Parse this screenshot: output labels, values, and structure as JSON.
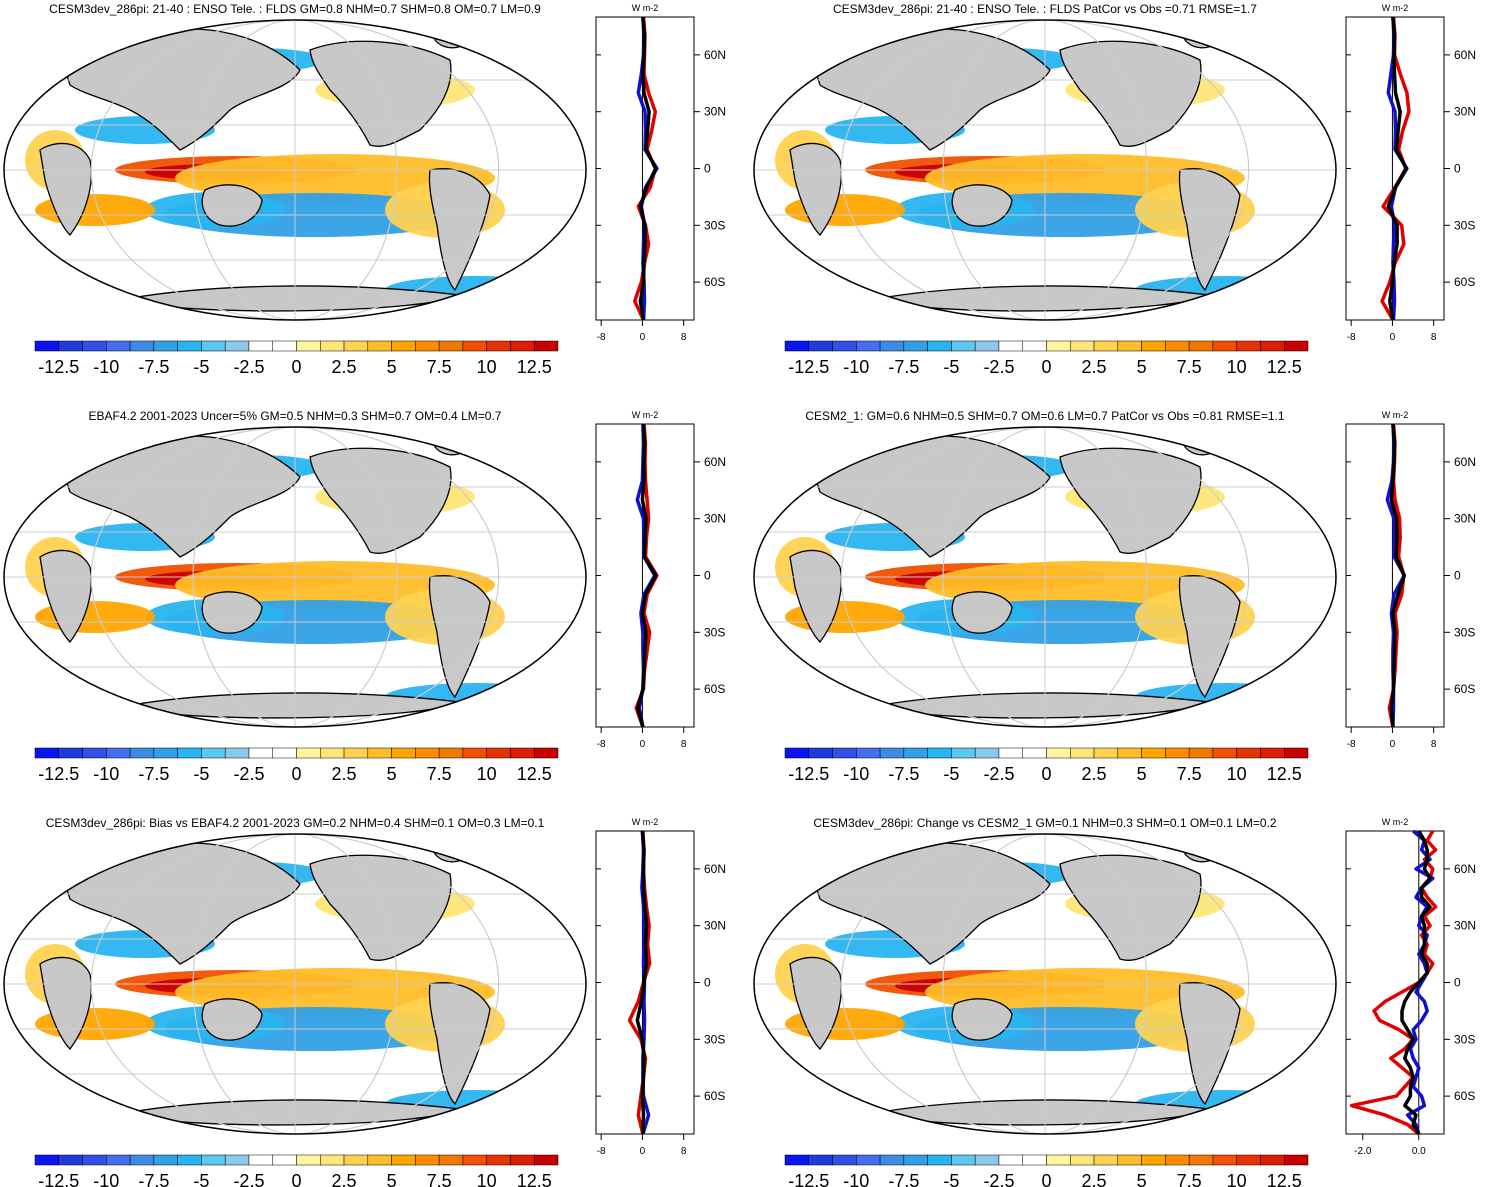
{
  "colorbar": {
    "colors": [
      "#0a14f0",
      "#1e3cdc",
      "#3250e6",
      "#466ef0",
      "#3c8ce6",
      "#32a0e6",
      "#28b4f0",
      "#5ac8f0",
      "#8cc8eb",
      "#ffffff",
      "#ffffff",
      "#fff5a0",
      "#ffe678",
      "#ffd250",
      "#ffbe28",
      "#ffa500",
      "#ff8c00",
      "#f07800",
      "#f05000",
      "#e63200",
      "#dc1e00",
      "#c80000"
    ],
    "labels": [
      "-12.5",
      "-10",
      "-7.5",
      "-5",
      "-2.5",
      "0",
      "2.5",
      "5",
      "7.5",
      "10",
      "12.5"
    ]
  },
  "chart_data": [
    {
      "type": "heatmap",
      "title": "CESM3dev_286pi: 21-40 : ENSO Tele. : FLDS GM=0.8 NHM=0.7 SHM=0.8 OM=0.7 LM=0.9",
      "units": "W m-2",
      "profile": {
        "title": "W m-2",
        "ylabels": [
          "60N",
          "30N",
          "0",
          "30S",
          "60S"
        ],
        "xticks": [
          "-8",
          "0",
          "8"
        ],
        "xlim": [
          -9,
          10
        ],
        "lat": [
          80,
          70,
          60,
          50,
          40,
          30,
          20,
          10,
          0,
          -10,
          -20,
          -30,
          -40,
          -50,
          -60,
          -70,
          -80
        ],
        "series": [
          {
            "name": "red",
            "color": "#e00000",
            "values": [
              0.2,
              0.5,
              0.4,
              0.3,
              1.2,
              2.5,
              1.8,
              0.9,
              2.5,
              1.5,
              -0.8,
              0.6,
              1.2,
              0.4,
              -0.2,
              -1.5,
              0.2
            ]
          },
          {
            "name": "blue",
            "color": "#1010d0",
            "values": [
              0.1,
              0.3,
              0.2,
              -0.2,
              -0.8,
              0.5,
              0.6,
              0.5,
              2.8,
              0.6,
              -0.2,
              0.4,
              0.2,
              0.1,
              0.3,
              0.4,
              0.2
            ]
          },
          {
            "name": "black",
            "color": "#000000",
            "values": [
              0.1,
              0.4,
              0.3,
              0.1,
              0.3,
              1.3,
              1.0,
              0.7,
              2.6,
              0.8,
              -0.4,
              0.5,
              0.5,
              0.3,
              0.2,
              -0.4,
              0.2
            ]
          }
        ]
      }
    },
    {
      "type": "heatmap",
      "title": "CESM3dev_286pi: 21-40 : ENSO Tele. : FLDS PatCor vs Obs =0.71 RMSE=1.7",
      "units": "W m-2",
      "profile": {
        "title": "W m-2",
        "ylabels": [
          "60N",
          "30N",
          "0",
          "30S",
          "60S"
        ],
        "xticks": [
          "-8",
          "0",
          "8"
        ],
        "xlim": [
          -9,
          10
        ],
        "lat": [
          80,
          70,
          60,
          50,
          40,
          30,
          20,
          10,
          0,
          -10,
          -20,
          -30,
          -40,
          -50,
          -60,
          -70,
          -80
        ],
        "series": [
          {
            "name": "red",
            "color": "#e00000",
            "values": [
              0.2,
              0.5,
              0.4,
              1.5,
              2.8,
              3.2,
              2.0,
              1.2,
              2.6,
              0.5,
              -1.8,
              1.8,
              2.2,
              0.5,
              -0.5,
              -2.0,
              0.1
            ]
          },
          {
            "name": "blue",
            "color": "#1010d0",
            "values": [
              0.1,
              0.3,
              0.2,
              -0.3,
              -0.8,
              0.5,
              0.6,
              0.5,
              2.8,
              0.6,
              -0.2,
              0.4,
              0.2,
              0.1,
              0.3,
              0.4,
              0.2
            ]
          },
          {
            "name": "black",
            "color": "#000000",
            "values": [
              0.1,
              0.4,
              0.3,
              0.4,
              0.6,
              1.5,
              1.1,
              0.8,
              2.7,
              0.6,
              -0.8,
              0.9,
              0.9,
              0.3,
              0.0,
              -0.5,
              0.1
            ]
          }
        ]
      }
    },
    {
      "type": "heatmap",
      "title": "EBAF4.2 2001-2023 Uncer=5% GM=0.5 NHM=0.3 SHM=0.7 OM=0.4 LM=0.7",
      "units": "W m-2",
      "profile": {
        "title": "W m-2",
        "ylabels": [
          "60N",
          "30N",
          "0",
          "30S",
          "60S"
        ],
        "xticks": [
          "-8",
          "0",
          "8"
        ],
        "xlim": [
          -9,
          10
        ],
        "lat": [
          80,
          70,
          60,
          50,
          40,
          30,
          20,
          10,
          0,
          -10,
          -20,
          -30,
          -40,
          -50,
          -60,
          -70,
          -80
        ],
        "series": [
          {
            "name": "red",
            "color": "#e00000",
            "values": [
              0.3,
              0.6,
              0.5,
              0.6,
              0.9,
              1.2,
              0.8,
              0.6,
              2.8,
              0.9,
              0.3,
              1.4,
              0.9,
              0.4,
              0.2,
              -1.2,
              0.1
            ]
          },
          {
            "name": "blue",
            "color": "#1010d0",
            "values": [
              0.1,
              0.2,
              0.1,
              0.0,
              -1.0,
              0.2,
              0.3,
              0.3,
              2.4,
              0.3,
              -0.3,
              0.1,
              0.1,
              0.2,
              0.1,
              -0.6,
              0.1
            ]
          },
          {
            "name": "black",
            "color": "#000000",
            "values": [
              0.2,
              0.4,
              0.3,
              0.3,
              0.0,
              0.7,
              0.5,
              0.4,
              2.6,
              0.6,
              0.0,
              0.7,
              0.5,
              0.3,
              0.1,
              -0.9,
              0.1
            ]
          }
        ]
      }
    },
    {
      "type": "heatmap",
      "title": "CESM2_1: GM=0.6 NHM=0.5 SHM=0.7 OM=0.6 LM=0.7 PatCor vs Obs =0.81 RMSE=1.1",
      "units": "W m-2",
      "profile": {
        "title": "W m-2",
        "ylabels": [
          "60N",
          "30N",
          "0",
          "30S",
          "60S"
        ],
        "xticks": [
          "-8",
          "0",
          "8"
        ],
        "xlim": [
          -9,
          10
        ],
        "lat": [
          80,
          70,
          60,
          50,
          40,
          30,
          20,
          10,
          0,
          -10,
          -20,
          -30,
          -40,
          -50,
          -60,
          -70,
          -80
        ],
        "series": [
          {
            "name": "red",
            "color": "#e00000",
            "values": [
              0.2,
              0.5,
              0.4,
              0.2,
              0.5,
              1.4,
              1.5,
              1.2,
              2.2,
              1.8,
              0.5,
              0.9,
              0.7,
              0.5,
              0.2,
              -0.6,
              0.1
            ]
          },
          {
            "name": "blue",
            "color": "#1010d0",
            "values": [
              0.1,
              0.3,
              0.2,
              -0.1,
              -1.0,
              0.3,
              0.4,
              0.3,
              2.3,
              0.3,
              -0.2,
              0.2,
              0.1,
              0.1,
              0.2,
              0.2,
              0.1
            ]
          },
          {
            "name": "black",
            "color": "#000000",
            "values": [
              0.1,
              0.4,
              0.3,
              0.1,
              -0.2,
              0.8,
              0.9,
              0.7,
              2.3,
              1.1,
              0.1,
              0.5,
              0.4,
              0.3,
              0.2,
              -0.2,
              0.1
            ]
          }
        ]
      }
    },
    {
      "type": "heatmap",
      "title": "CESM3dev_286pi: Bias vs EBAF4.2 2001-2023 GM=0.2 NHM=0.4 SHM=0.1 OM=0.3 LM=0.1",
      "units": "W m-2",
      "profile": {
        "title": "W m-2",
        "ylabels": [
          "60N",
          "30N",
          "0",
          "30S",
          "60S"
        ],
        "xticks": [
          "-8",
          "0",
          "8"
        ],
        "xlim": [
          -9,
          10
        ],
        "lat": [
          80,
          70,
          60,
          50,
          40,
          30,
          20,
          10,
          0,
          -10,
          -20,
          -30,
          -40,
          -50,
          -60,
          -70,
          -80
        ],
        "series": [
          {
            "name": "red",
            "color": "#e00000",
            "values": [
              0.1,
              0.3,
              0.2,
              0.4,
              0.8,
              1.3,
              1.0,
              1.4,
              0.2,
              -0.8,
              -2.5,
              -0.3,
              0.6,
              0.2,
              -0.3,
              -0.8,
              0.1
            ]
          },
          {
            "name": "blue",
            "color": "#1010d0",
            "values": [
              0.0,
              0.2,
              0.1,
              -0.1,
              0.2,
              0.3,
              0.3,
              0.2,
              0.4,
              0.3,
              0.4,
              0.3,
              0.1,
              0.1,
              0.2,
              1.2,
              0.1
            ]
          },
          {
            "name": "black",
            "color": "#000000",
            "values": [
              0.0,
              0.3,
              0.2,
              0.2,
              0.5,
              0.8,
              0.6,
              0.8,
              0.3,
              -0.2,
              -1.0,
              0.0,
              0.3,
              0.2,
              0.0,
              0.2,
              0.1
            ]
          }
        ]
      }
    },
    {
      "type": "heatmap",
      "title": "CESM3dev_286pi: Change vs CESM2_1 GM=0.1 NHM=0.3 SHM=0.1 OM=0.1 LM=0.2",
      "units": "W m-2",
      "profile": {
        "title": "W m-2",
        "ylabels": [
          "60N",
          "30N",
          "0",
          "30S",
          "60S"
        ],
        "xticks": [
          "-2.0",
          "0.0"
        ],
        "xlim": [
          -2.6,
          0.9
        ],
        "lat": [
          80,
          75,
          70,
          65,
          60,
          55,
          50,
          45,
          40,
          35,
          30,
          25,
          20,
          15,
          10,
          5,
          0,
          -5,
          -10,
          -15,
          -20,
          -25,
          -30,
          -35,
          -40,
          -45,
          -50,
          -55,
          -60,
          -65,
          -70,
          -75,
          -80
        ],
        "series": [
          {
            "name": "red",
            "color": "#e00000",
            "values": [
              0.5,
              0.3,
              0.6,
              0.2,
              0.5,
              0.4,
              0.1,
              0.3,
              0.6,
              0.2,
              0.4,
              0.1,
              0.3,
              0.2,
              0.5,
              0.3,
              0.0,
              -0.6,
              -1.2,
              -1.6,
              -1.4,
              -0.7,
              -0.2,
              -0.5,
              -1.0,
              -0.6,
              -0.2,
              -0.5,
              -0.8,
              -2.4,
              -1.2,
              -0.4,
              0.0
            ]
          },
          {
            "name": "blue",
            "color": "#1010d0",
            "values": [
              -0.2,
              0.2,
              0.1,
              0.4,
              -0.1,
              0.5,
              0.1,
              -0.1,
              0.3,
              0.1,
              0.0,
              0.3,
              0.2,
              0.0,
              0.2,
              0.3,
              0.1,
              -0.1,
              0.2,
              0.3,
              0.1,
              -0.2,
              -0.1,
              -0.3,
              -0.2,
              0.0,
              -0.1,
              -0.2,
              0.1,
              0.2,
              -0.4,
              -0.1,
              0.0
            ]
          },
          {
            "name": "black",
            "color": "#000000",
            "values": [
              0.0,
              0.2,
              0.3,
              0.3,
              0.2,
              0.4,
              0.1,
              0.1,
              0.4,
              0.1,
              0.2,
              0.2,
              0.2,
              0.1,
              0.3,
              0.3,
              0.0,
              -0.3,
              -0.5,
              -0.6,
              -0.6,
              -0.4,
              -0.2,
              -0.4,
              -0.5,
              -0.3,
              -0.2,
              -0.3,
              -0.3,
              -0.5,
              -0.1,
              -0.2,
              0.0
            ]
          }
        ]
      }
    }
  ]
}
